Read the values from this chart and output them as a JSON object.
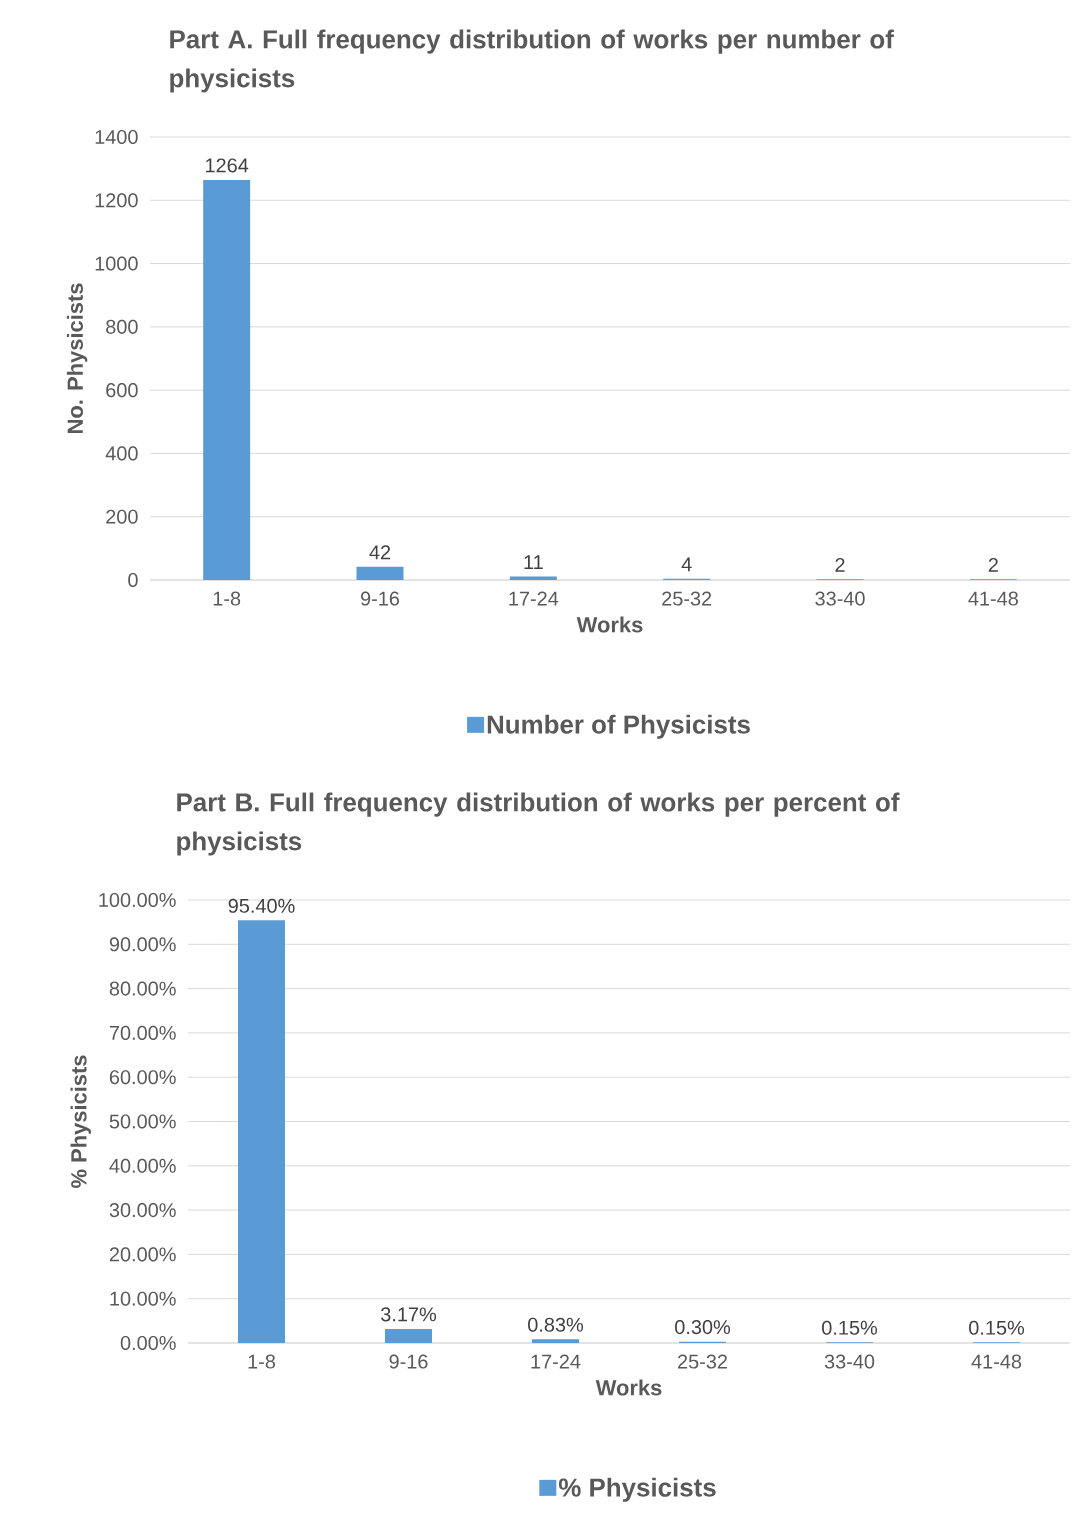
{
  "chart_data": [
    {
      "type": "bar",
      "title": "Part A. Full frequency distribution of works per number  of physicists",
      "xlabel": "Works",
      "ylabel": "No. Physicists",
      "categories": [
        "1-8",
        "9-16",
        "17-24",
        "25-32",
        "33-40",
        "41-48"
      ],
      "series": [
        {
          "name": "Number of Physicists",
          "color": "#5b9bd5",
          "values": [
            1264,
            42,
            11,
            4,
            2,
            2
          ]
        }
      ],
      "ylim": [
        0,
        1400
      ],
      "yticks": [
        0,
        200,
        400,
        600,
        800,
        1000,
        1200,
        1400
      ],
      "grid": "y",
      "legend": "bottom",
      "data_labels": true
    },
    {
      "type": "bar",
      "title": "Part B. Full frequency distribution of works per percent of physicists",
      "xlabel": "Works",
      "ylabel": "%  Physicists",
      "categories": [
        "1-8",
        "9-16",
        "17-24",
        "25-32",
        "33-40",
        "41-48"
      ],
      "series": [
        {
          "name": "% Physicists",
          "color": "#5b9bd5",
          "values": [
            95.4,
            3.17,
            0.83,
            0.3,
            0.15,
            0.15
          ],
          "value_labels": [
            "95.40%",
            "3.17%",
            "0.83%",
            "0.30%",
            "0.15%",
            "0.15%"
          ]
        }
      ],
      "ylim": [
        0,
        100
      ],
      "yticks": [
        {
          "value": 0,
          "label": "0.00%"
        },
        {
          "value": 10,
          "label": "10.00%"
        },
        {
          "value": 20,
          "label": "20.00%"
        },
        {
          "value": 30,
          "label": "30.00%"
        },
        {
          "value": 40,
          "label": "40.00%"
        },
        {
          "value": 50,
          "label": "50.00%"
        },
        {
          "value": 60,
          "label": "60.00%"
        },
        {
          "value": 70,
          "label": "70.00%"
        },
        {
          "value": 80,
          "label": "80.00%"
        },
        {
          "value": 90,
          "label": "90.00%"
        },
        {
          "value": 100,
          "label": "100.00%"
        }
      ],
      "grid": "y",
      "legend": "bottom"
    }
  ]
}
